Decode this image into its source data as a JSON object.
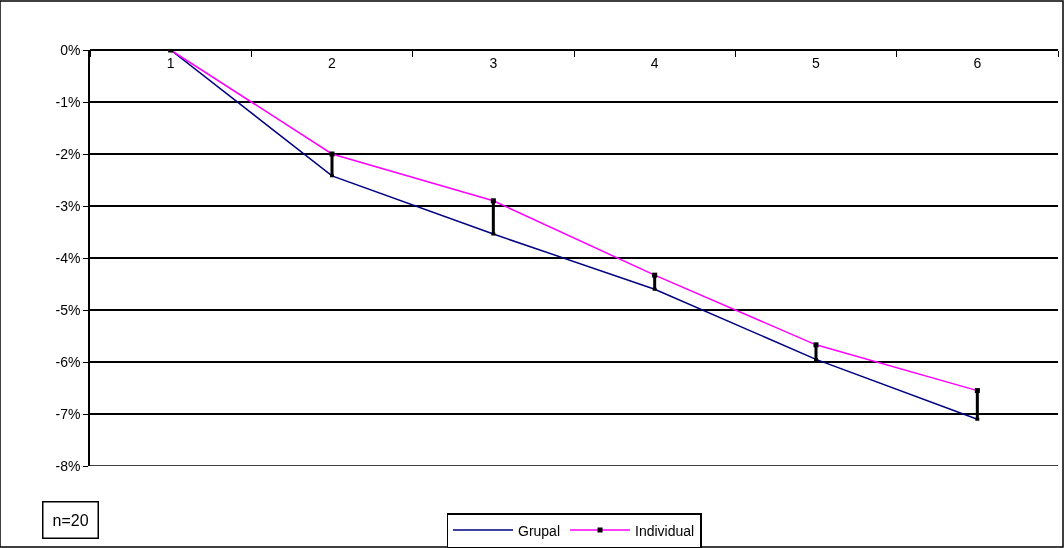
{
  "chart_data": {
    "type": "line",
    "categories": [
      "1",
      "2",
      "3",
      "4",
      "5",
      "6"
    ],
    "series": [
      {
        "name": "Grupal",
        "color": "#000080",
        "values": [
          0,
          -2.42,
          -3.54,
          -4.6,
          -5.95,
          -7.1
        ],
        "marker": "none"
      },
      {
        "name": "Individual",
        "color": "#ff00ff",
        "values": [
          0,
          -2.0,
          -2.9,
          -4.33,
          -5.67,
          -6.55
        ],
        "marker": "square",
        "errors": [
          null,
          [
            -2.42,
            -2.0
          ],
          [
            -3.54,
            -2.9
          ],
          [
            -4.6,
            -4.33
          ],
          [
            -5.95,
            -5.67
          ],
          [
            -7.1,
            -6.55
          ]
        ]
      }
    ],
    "ylim": [
      -8,
      0
    ],
    "yticks": [
      {
        "value": 0,
        "label": "0%"
      },
      {
        "value": -1,
        "label": "-1%"
      },
      {
        "value": -2,
        "label": "-2%"
      },
      {
        "value": -3,
        "label": "-3%"
      },
      {
        "value": -4,
        "label": "-4%"
      },
      {
        "value": -5,
        "label": "-5%"
      },
      {
        "value": -6,
        "label": "-6%"
      },
      {
        "value": -7,
        "label": "-7%"
      },
      {
        "value": -8,
        "label": "-8%"
      }
    ],
    "grid": "y",
    "legend": "bottom",
    "annotations": [
      "n=20"
    ]
  }
}
